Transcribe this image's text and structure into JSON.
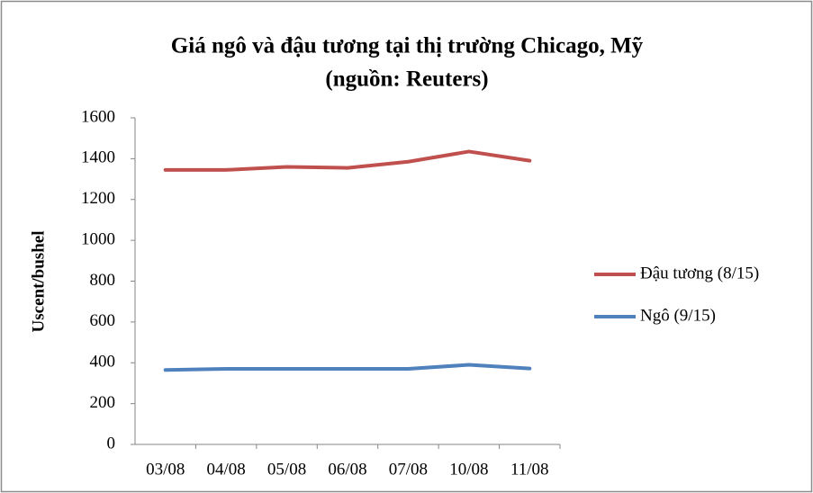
{
  "chart_data": {
    "type": "line",
    "title": [
      "Giá ngô và đậu tương tại thị trường Chicago, Mỹ",
      "(nguồn: Reuters)"
    ],
    "y_label": "Uscent/bushel",
    "categories": [
      "03/08",
      "04/08",
      "05/08",
      "06/08",
      "07/08",
      "10/08",
      "11/08"
    ],
    "series": [
      {
        "name": "Đậu tương (8/15)",
        "color": "#c0504d",
        "values": [
          1345,
          1345,
          1360,
          1355,
          1385,
          1435,
          1390
        ]
      },
      {
        "name": "Ngô (9/15)",
        "color": "#4f81bd",
        "values": [
          365,
          370,
          370,
          370,
          370,
          390,
          372
        ]
      }
    ],
    "ylim": [
      0,
      1600
    ],
    "yticks": [
      0,
      200,
      400,
      600,
      800,
      1000,
      1200,
      1400,
      1600
    ],
    "grid": false,
    "legend": "right"
  }
}
